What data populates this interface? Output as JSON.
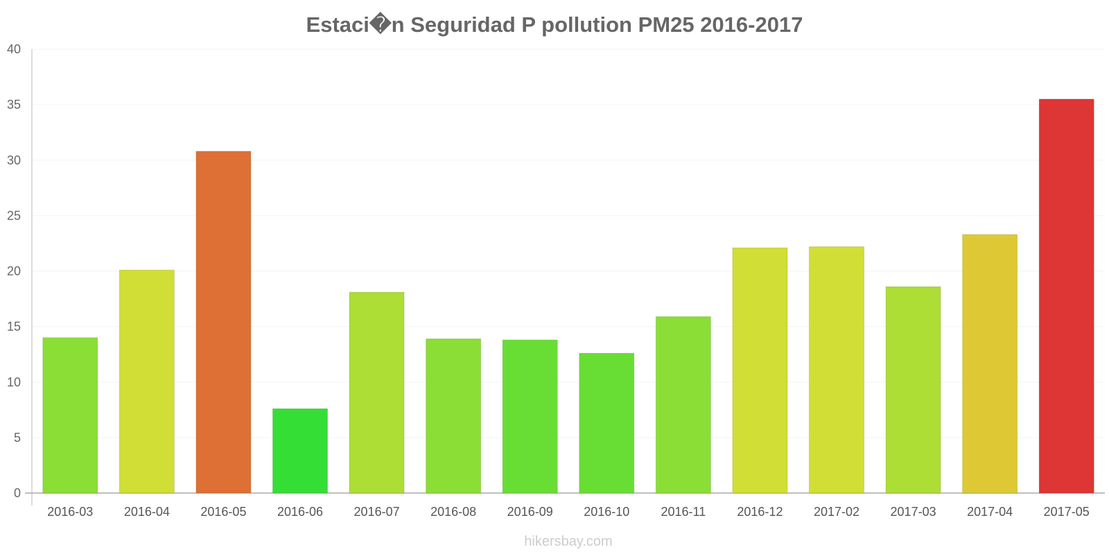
{
  "chart_data": {
    "type": "bar",
    "title": "Estaci�n Seguridad P pollution PM25 2016-2017",
    "xlabel": "",
    "ylabel": "",
    "ylim": [
      0,
      40
    ],
    "yticks": [
      0,
      5,
      10,
      15,
      20,
      25,
      30,
      35,
      40
    ],
    "categories": [
      "2016-03",
      "2016-04",
      "2016-05",
      "2016-06",
      "2016-07",
      "2016-08",
      "2016-09",
      "2016-10",
      "2016-11",
      "2016-12",
      "2017-02",
      "2017-03",
      "2017-04",
      "2017-05"
    ],
    "values": [
      14.0,
      20.1,
      30.8,
      7.6,
      18.1,
      13.9,
      13.8,
      12.6,
      15.9,
      22.1,
      22.2,
      18.6,
      23.3,
      35.5
    ],
    "colors": [
      "#8ade35",
      "#d0de35",
      "#de7035",
      "#35de35",
      "#acde35",
      "#8ade35",
      "#68de35",
      "#68de35",
      "#8ade35",
      "#d0de35",
      "#d0de35",
      "#acde35",
      "#dec935",
      "#de3535"
    ],
    "grid": true,
    "legend": "none"
  },
  "watermark": "hikersbay.com"
}
